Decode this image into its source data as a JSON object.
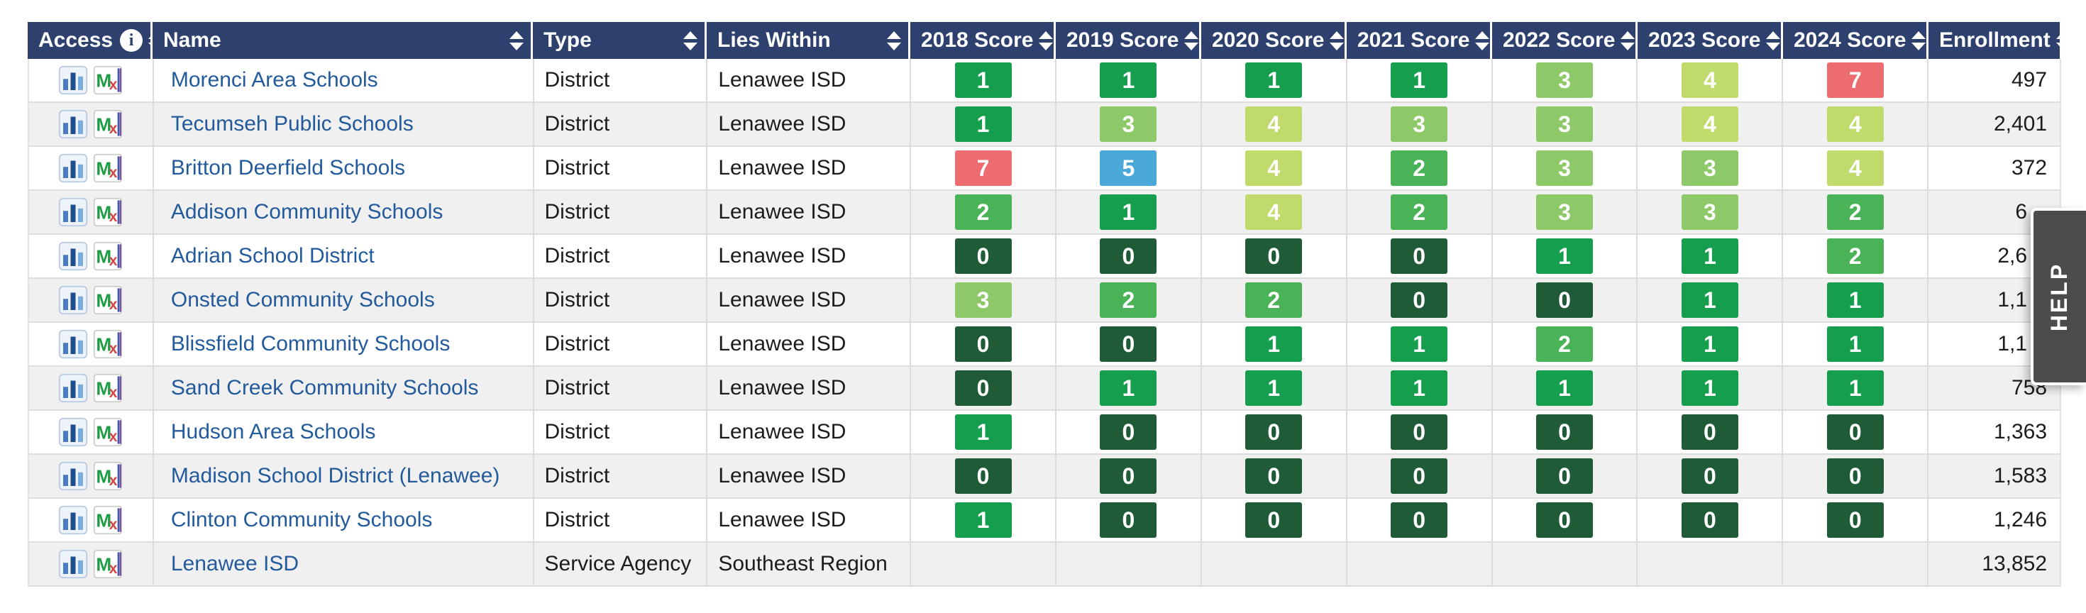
{
  "help_tab": {
    "label": "HELP"
  },
  "colors": {
    "header_bg": "#2e406e",
    "link": "#235a9c",
    "row_alt": "#f0f0f0",
    "border": "#dcdcdc",
    "help_bg": "#4c4c4c",
    "score_badges": {
      "0": "#1e5b36",
      "1": "#149e4d",
      "2": "#4ab357",
      "3": "#8dc968",
      "4": "#c0da6c",
      "5": "#4aa8d8",
      "7": "#ed6c70"
    }
  },
  "table": {
    "columns": [
      {
        "key": "access",
        "label": "Access",
        "class": "c-access",
        "info_icon": true,
        "sortable": true
      },
      {
        "key": "name",
        "label": "Name",
        "class": "c-name",
        "info_icon": false,
        "sortable": true
      },
      {
        "key": "type",
        "label": "Type",
        "class": "c-type",
        "info_icon": false,
        "sortable": true
      },
      {
        "key": "lies",
        "label": "Lies Within",
        "class": "c-lies",
        "info_icon": false,
        "sortable": true
      },
      {
        "key": "s2018",
        "label": "2018 Score",
        "class": "c-score",
        "info_icon": false,
        "sortable": true
      },
      {
        "key": "s2019",
        "label": "2019 Score",
        "class": "c-score",
        "info_icon": false,
        "sortable": true
      },
      {
        "key": "s2020",
        "label": "2020 Score",
        "class": "c-score",
        "info_icon": false,
        "sortable": true
      },
      {
        "key": "s2021",
        "label": "2021 Score",
        "class": "c-score",
        "info_icon": false,
        "sortable": true
      },
      {
        "key": "s2022",
        "label": "2022 Score",
        "class": "c-score",
        "info_icon": false,
        "sortable": true
      },
      {
        "key": "s2023",
        "label": "2023 Score",
        "class": "c-score",
        "info_icon": false,
        "sortable": true
      },
      {
        "key": "s2024",
        "label": "2024 Score",
        "class": "c-score",
        "info_icon": false,
        "sortable": true
      },
      {
        "key": "enroll",
        "label": "Enrollment",
        "class": "c-enroll",
        "info_icon": false,
        "sortable": true
      }
    ],
    "access_icons": [
      {
        "name": "reports-bar-chart-icon"
      },
      {
        "name": "mi-school-data-mx-icon"
      }
    ],
    "rows": [
      {
        "name": "Morenci Area Schools",
        "type": "District",
        "lies_within": "Lenawee ISD",
        "scores": [
          1,
          1,
          1,
          1,
          3,
          4,
          7
        ],
        "enrollment": "497",
        "enrollment_truncated": false
      },
      {
        "name": "Tecumseh Public Schools",
        "type": "District",
        "lies_within": "Lenawee ISD",
        "scores": [
          1,
          3,
          4,
          3,
          3,
          4,
          4
        ],
        "enrollment": "2,401",
        "enrollment_truncated": false
      },
      {
        "name": "Britton Deerfield Schools",
        "type": "District",
        "lies_within": "Lenawee ISD",
        "scores": [
          7,
          5,
          4,
          2,
          3,
          3,
          4
        ],
        "enrollment": "372",
        "enrollment_truncated": false
      },
      {
        "name": "Addison Community Schools",
        "type": "District",
        "lies_within": "Lenawee ISD",
        "scores": [
          2,
          1,
          4,
          2,
          3,
          3,
          2
        ],
        "enrollment": "6",
        "enrollment_truncated": true
      },
      {
        "name": "Adrian School District",
        "type": "District",
        "lies_within": "Lenawee ISD",
        "scores": [
          0,
          0,
          0,
          0,
          1,
          1,
          2
        ],
        "enrollment": "2,6",
        "enrollment_truncated": true
      },
      {
        "name": "Onsted Community Schools",
        "type": "District",
        "lies_within": "Lenawee ISD",
        "scores": [
          3,
          2,
          2,
          0,
          0,
          1,
          1
        ],
        "enrollment": "1,1",
        "enrollment_truncated": true
      },
      {
        "name": "Blissfield Community Schools",
        "type": "District",
        "lies_within": "Lenawee ISD",
        "scores": [
          0,
          0,
          1,
          1,
          2,
          1,
          1
        ],
        "enrollment": "1,1",
        "enrollment_truncated": true
      },
      {
        "name": "Sand Creek Community Schools",
        "type": "District",
        "lies_within": "Lenawee ISD",
        "scores": [
          0,
          1,
          1,
          1,
          1,
          1,
          1
        ],
        "enrollment": "758",
        "enrollment_truncated": false
      },
      {
        "name": "Hudson Area Schools",
        "type": "District",
        "lies_within": "Lenawee ISD",
        "scores": [
          1,
          0,
          0,
          0,
          0,
          0,
          0
        ],
        "enrollment": "1,363",
        "enrollment_truncated": false
      },
      {
        "name": "Madison School District (Lenawee)",
        "type": "District",
        "lies_within": "Lenawee ISD",
        "scores": [
          0,
          0,
          0,
          0,
          0,
          0,
          0
        ],
        "enrollment": "1,583",
        "enrollment_truncated": false
      },
      {
        "name": "Clinton Community Schools",
        "type": "District",
        "lies_within": "Lenawee ISD",
        "scores": [
          1,
          0,
          0,
          0,
          0,
          0,
          0
        ],
        "enrollment": "1,246",
        "enrollment_truncated": false
      },
      {
        "name": "Lenawee ISD",
        "type": "Service Agency",
        "lies_within": "Southeast Region",
        "scores": [
          null,
          null,
          null,
          null,
          null,
          null,
          null
        ],
        "enrollment": "13,852",
        "enrollment_truncated": false
      }
    ]
  }
}
